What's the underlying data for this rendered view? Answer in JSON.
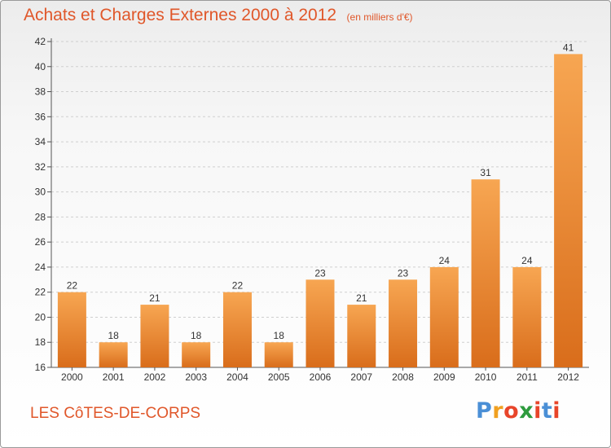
{
  "title": "Achats et Charges Externes 2000 à 2012",
  "unit_note": "(en milliers d'€)",
  "commune": "LES CôTES-DE-CORPS",
  "logo": {
    "letters": [
      "P",
      "r",
      "o",
      "x",
      "i",
      "t",
      "i"
    ],
    "colors": [
      "#4a8fd6",
      "#f0a020",
      "#e8452a",
      "#2e9b3e",
      "#e8452a",
      "#4a8fd6",
      "#e8452a"
    ]
  },
  "colors": {
    "text_accent": "#e0572a",
    "bar_light": "#f7a652",
    "bar_dark": "#d96d1b",
    "grid": "#cfcfcf"
  },
  "chart_data": {
    "type": "bar",
    "title": "Achats et Charges Externes 2000 à 2012",
    "unit": "(en milliers d'€)",
    "categories": [
      "2000",
      "2001",
      "2002",
      "2003",
      "2004",
      "2005",
      "2006",
      "2007",
      "2008",
      "2009",
      "2010",
      "2011",
      "2012"
    ],
    "values": [
      22,
      18,
      21,
      18,
      22,
      18,
      23,
      21,
      23,
      24,
      31,
      24,
      41
    ],
    "ylim": [
      16,
      42
    ],
    "yticks": [
      16,
      18,
      20,
      22,
      24,
      26,
      28,
      30,
      32,
      34,
      36,
      38,
      40,
      42
    ],
    "grid": "horizontal dashed",
    "legend": "none"
  }
}
